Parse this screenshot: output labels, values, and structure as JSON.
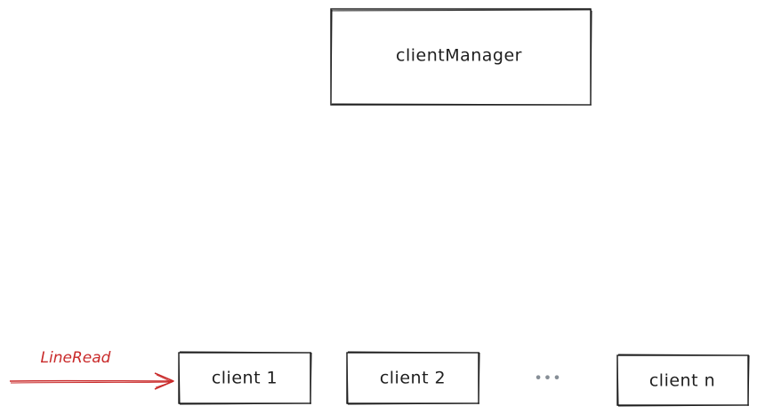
{
  "diagram": {
    "nodes": {
      "manager": {
        "label": "clientManager"
      },
      "client1": {
        "label": "client 1"
      },
      "client2": {
        "label": "client 2"
      },
      "ellipsis": {
        "label": "•••"
      },
      "clientN": {
        "label": "client n"
      }
    },
    "edges": {
      "input": {
        "label": "LineRead",
        "color": "#c92a2a"
      }
    },
    "colors": {
      "stroke": "#1e1e1e",
      "ellipsis": "#868e96",
      "accent": "#c92a2a"
    }
  }
}
